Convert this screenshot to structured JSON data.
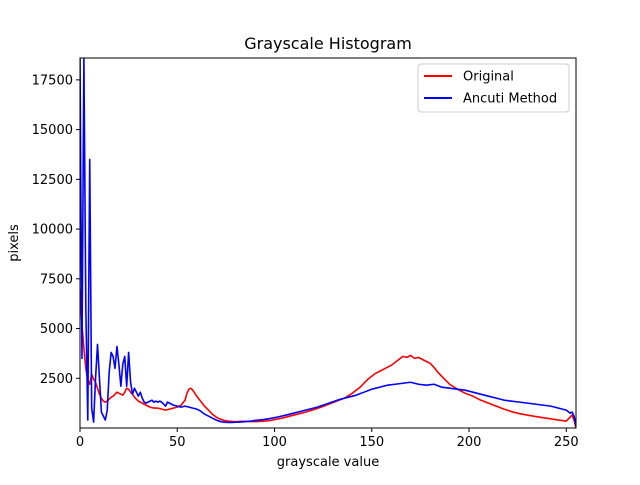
{
  "chart_data": {
    "type": "line",
    "title": "Grayscale Histogram",
    "xlabel": "grayscale value",
    "ylabel": "pixels",
    "xlim": [
      0,
      255
    ],
    "ylim": [
      0,
      18600
    ],
    "x_ticks": [
      0,
      50,
      100,
      150,
      200,
      250
    ],
    "y_ticks": [
      2500,
      5000,
      7500,
      10000,
      12500,
      15000,
      17500
    ],
    "grid": false,
    "legend_position": "top-right",
    "series": [
      {
        "name": "Original",
        "color": "#ff0000",
        "points": [
          [
            0,
            7000
          ],
          [
            1,
            5200
          ],
          [
            2,
            4000
          ],
          [
            3,
            3000
          ],
          [
            4,
            2400
          ],
          [
            5,
            2200
          ],
          [
            6,
            2700
          ],
          [
            7,
            2450
          ],
          [
            8,
            2300
          ],
          [
            9,
            2000
          ],
          [
            10,
            1700
          ],
          [
            11,
            1500
          ],
          [
            12,
            1350
          ],
          [
            13,
            1300
          ],
          [
            14,
            1350
          ],
          [
            15,
            1450
          ],
          [
            16,
            1550
          ],
          [
            17,
            1600
          ],
          [
            18,
            1700
          ],
          [
            19,
            1800
          ],
          [
            20,
            1750
          ],
          [
            21,
            1700
          ],
          [
            22,
            1650
          ],
          [
            23,
            1800
          ],
          [
            24,
            2000
          ],
          [
            25,
            1950
          ],
          [
            26,
            1800
          ],
          [
            27,
            1700
          ],
          [
            28,
            1550
          ],
          [
            29,
            1450
          ],
          [
            30,
            1350
          ],
          [
            32,
            1250
          ],
          [
            34,
            1150
          ],
          [
            36,
            1050
          ],
          [
            38,
            1000
          ],
          [
            40,
            1000
          ],
          [
            42,
            950
          ],
          [
            44,
            900
          ],
          [
            46,
            950
          ],
          [
            48,
            1000
          ],
          [
            50,
            1050
          ],
          [
            52,
            1150
          ],
          [
            54,
            1400
          ],
          [
            55,
            1750
          ],
          [
            56,
            1950
          ],
          [
            57,
            2000
          ],
          [
            58,
            1900
          ],
          [
            60,
            1600
          ],
          [
            62,
            1350
          ],
          [
            64,
            1100
          ],
          [
            66,
            900
          ],
          [
            68,
            700
          ],
          [
            70,
            550
          ],
          [
            72,
            450
          ],
          [
            74,
            380
          ],
          [
            76,
            350
          ],
          [
            78,
            330
          ],
          [
            80,
            320
          ],
          [
            82,
            330
          ],
          [
            84,
            340
          ],
          [
            86,
            330
          ],
          [
            88,
            320
          ],
          [
            90,
            320
          ],
          [
            92,
            330
          ],
          [
            94,
            340
          ],
          [
            96,
            360
          ],
          [
            98,
            380
          ],
          [
            100,
            420
          ],
          [
            104,
            500
          ],
          [
            108,
            600
          ],
          [
            112,
            700
          ],
          [
            116,
            800
          ],
          [
            120,
            920
          ],
          [
            124,
            1050
          ],
          [
            128,
            1200
          ],
          [
            132,
            1350
          ],
          [
            136,
            1500
          ],
          [
            140,
            1750
          ],
          [
            144,
            2050
          ],
          [
            148,
            2450
          ],
          [
            152,
            2750
          ],
          [
            156,
            2950
          ],
          [
            160,
            3150
          ],
          [
            164,
            3450
          ],
          [
            166,
            3600
          ],
          [
            168,
            3550
          ],
          [
            170,
            3650
          ],
          [
            172,
            3500
          ],
          [
            174,
            3550
          ],
          [
            176,
            3450
          ],
          [
            178,
            3350
          ],
          [
            180,
            3250
          ],
          [
            182,
            3050
          ],
          [
            184,
            2800
          ],
          [
            186,
            2600
          ],
          [
            188,
            2400
          ],
          [
            190,
            2200
          ],
          [
            194,
            1950
          ],
          [
            198,
            1750
          ],
          [
            202,
            1600
          ],
          [
            206,
            1400
          ],
          [
            210,
            1250
          ],
          [
            214,
            1100
          ],
          [
            218,
            950
          ],
          [
            222,
            820
          ],
          [
            226,
            720
          ],
          [
            230,
            650
          ],
          [
            234,
            580
          ],
          [
            238,
            520
          ],
          [
            242,
            460
          ],
          [
            246,
            400
          ],
          [
            250,
            350
          ],
          [
            252,
            550
          ],
          [
            253,
            650
          ],
          [
            254,
            400
          ],
          [
            255,
            0
          ]
        ]
      },
      {
        "name": "Ancuti Method",
        "color": "#0000ff",
        "points": [
          [
            0,
            18600
          ],
          [
            1,
            3500
          ],
          [
            2,
            18600
          ],
          [
            3,
            6000
          ],
          [
            4,
            400
          ],
          [
            5,
            13500
          ],
          [
            6,
            1000
          ],
          [
            7,
            300
          ],
          [
            8,
            2500
          ],
          [
            9,
            4200
          ],
          [
            10,
            2500
          ],
          [
            11,
            800
          ],
          [
            12,
            600
          ],
          [
            13,
            400
          ],
          [
            14,
            900
          ],
          [
            15,
            2800
          ],
          [
            16,
            3800
          ],
          [
            17,
            3600
          ],
          [
            18,
            3000
          ],
          [
            19,
            4100
          ],
          [
            20,
            3200
          ],
          [
            21,
            2100
          ],
          [
            22,
            3200
          ],
          [
            23,
            3600
          ],
          [
            24,
            2100
          ],
          [
            25,
            3800
          ],
          [
            26,
            2300
          ],
          [
            27,
            1700
          ],
          [
            28,
            2000
          ],
          [
            29,
            1800
          ],
          [
            30,
            1600
          ],
          [
            31,
            1800
          ],
          [
            32,
            1500
          ],
          [
            33,
            1300
          ],
          [
            34,
            1250
          ],
          [
            35,
            1300
          ],
          [
            36,
            1350
          ],
          [
            37,
            1400
          ],
          [
            38,
            1300
          ],
          [
            39,
            1350
          ],
          [
            40,
            1300
          ],
          [
            41,
            1350
          ],
          [
            42,
            1300
          ],
          [
            43,
            1200
          ],
          [
            44,
            1100
          ],
          [
            45,
            1300
          ],
          [
            46,
            1250
          ],
          [
            47,
            1200
          ],
          [
            48,
            1150
          ],
          [
            50,
            1100
          ],
          [
            52,
            1050
          ],
          [
            54,
            1100
          ],
          [
            56,
            1050
          ],
          [
            58,
            1000
          ],
          [
            60,
            950
          ],
          [
            62,
            850
          ],
          [
            64,
            700
          ],
          [
            66,
            600
          ],
          [
            68,
            500
          ],
          [
            70,
            400
          ],
          [
            72,
            330
          ],
          [
            74,
            290
          ],
          [
            76,
            280
          ],
          [
            78,
            280
          ],
          [
            80,
            290
          ],
          [
            82,
            300
          ],
          [
            84,
            310
          ],
          [
            86,
            330
          ],
          [
            88,
            350
          ],
          [
            90,
            380
          ],
          [
            94,
            420
          ],
          [
            98,
            480
          ],
          [
            102,
            560
          ],
          [
            106,
            650
          ],
          [
            110,
            750
          ],
          [
            114,
            850
          ],
          [
            118,
            950
          ],
          [
            122,
            1050
          ],
          [
            126,
            1180
          ],
          [
            130,
            1320
          ],
          [
            134,
            1450
          ],
          [
            138,
            1550
          ],
          [
            142,
            1650
          ],
          [
            146,
            1800
          ],
          [
            150,
            1950
          ],
          [
            154,
            2050
          ],
          [
            158,
            2150
          ],
          [
            162,
            2200
          ],
          [
            166,
            2250
          ],
          [
            170,
            2300
          ],
          [
            174,
            2200
          ],
          [
            178,
            2150
          ],
          [
            182,
            2200
          ],
          [
            186,
            2050
          ],
          [
            190,
            2000
          ],
          [
            194,
            1950
          ],
          [
            198,
            1900
          ],
          [
            202,
            1800
          ],
          [
            206,
            1700
          ],
          [
            210,
            1600
          ],
          [
            214,
            1500
          ],
          [
            218,
            1400
          ],
          [
            222,
            1350
          ],
          [
            226,
            1300
          ],
          [
            230,
            1250
          ],
          [
            234,
            1200
          ],
          [
            238,
            1150
          ],
          [
            242,
            1100
          ],
          [
            246,
            1000
          ],
          [
            250,
            900
          ],
          [
            252,
            750
          ],
          [
            253,
            800
          ],
          [
            254,
            600
          ],
          [
            255,
            100
          ]
        ]
      }
    ]
  }
}
